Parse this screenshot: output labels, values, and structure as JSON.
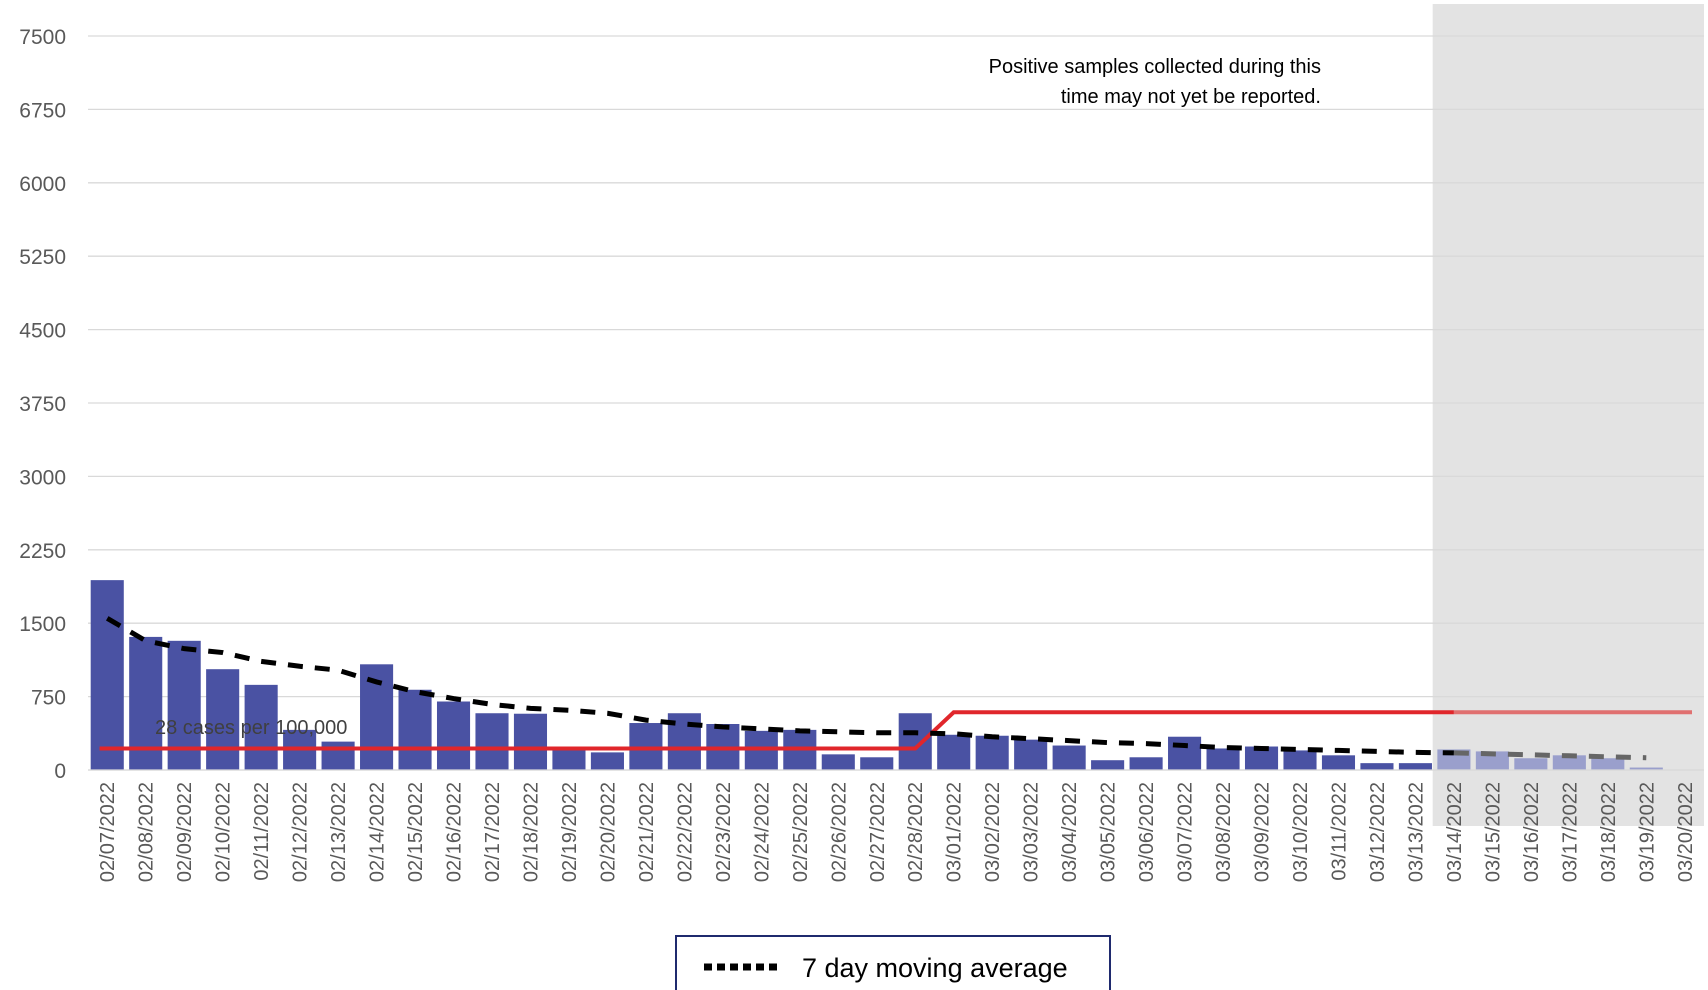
{
  "chart_data": {
    "type": "bar",
    "ylim": [
      0,
      7500
    ],
    "yticks": [
      "0",
      "750",
      "1500",
      "2250",
      "3000",
      "3750",
      "4500",
      "5250",
      "6000",
      "6750",
      "7500"
    ],
    "grid": true,
    "categories": [
      "02/07/2022",
      "02/08/2022",
      "02/09/2022",
      "02/10/2022",
      "02/11/2022",
      "02/12/2022",
      "02/13/2022",
      "02/14/2022",
      "02/15/2022",
      "02/16/2022",
      "02/17/2022",
      "02/18/2022",
      "02/19/2022",
      "02/20/2022",
      "02/21/2022",
      "02/22/2022",
      "02/23/2022",
      "02/24/2022",
      "02/25/2022",
      "02/26/2022",
      "02/27/2022",
      "02/28/2022",
      "03/01/2022",
      "03/02/2022",
      "03/03/2022",
      "03/04/2022",
      "03/05/2022",
      "03/06/2022",
      "03/07/2022",
      "03/08/2022",
      "03/09/2022",
      "03/10/2022",
      "03/11/2022",
      "03/12/2022",
      "03/13/2022",
      "03/14/2022",
      "03/15/2022",
      "03/16/2022",
      "03/17/2022",
      "03/18/2022",
      "03/19/2022",
      "03/20/2022"
    ],
    "series": [
      {
        "kind": "bar",
        "color": "#4a52a3",
        "faded_color": "#9a9fcc",
        "values": [
          1940,
          1360,
          1320,
          1030,
          870,
          410,
          290,
          1080,
          820,
          700,
          580,
          575,
          240,
          180,
          480,
          580,
          470,
          400,
          410,
          160,
          130,
          580,
          360,
          350,
          310,
          250,
          100,
          130,
          340,
          220,
          240,
          200,
          150,
          70,
          70,
          210,
          190,
          120,
          150,
          120,
          25,
          0
        ]
      },
      {
        "name": "7 day moving average",
        "kind": "line",
        "style": "dashed",
        "color": "#000000",
        "faded_color": "#666666",
        "values": [
          1550,
          1320,
          1240,
          1200,
          1110,
          1060,
          1020,
          900,
          800,
          730,
          670,
          630,
          610,
          580,
          510,
          470,
          440,
          420,
          400,
          390,
          380,
          380,
          370,
          340,
          320,
          300,
          280,
          270,
          250,
          230,
          220,
          210,
          200,
          190,
          180,
          175,
          165,
          155,
          145,
          135,
          125,
          null
        ]
      },
      {
        "kind": "line",
        "style": "solid",
        "color": "#e0262b",
        "faded_color": "#e07070",
        "values": [
          220,
          220,
          220,
          220,
          220,
          220,
          220,
          220,
          220,
          220,
          220,
          220,
          220,
          220,
          220,
          220,
          220,
          220,
          220,
          220,
          220,
          220,
          590,
          590,
          590,
          590,
          590,
          590,
          590,
          590,
          590,
          590,
          590,
          590,
          590,
          590,
          590,
          590,
          590,
          590,
          590,
          590
        ]
      }
    ],
    "shaded_from_index": 35,
    "annotations": [
      {
        "text_lines": [
          "Positive samples collected during this",
          "time may not yet be reported."
        ]
      },
      {
        "text": "28 cases per 100,000"
      }
    ],
    "legend": {
      "placement": "bottom",
      "entries": [
        "7 day moving average"
      ]
    }
  }
}
